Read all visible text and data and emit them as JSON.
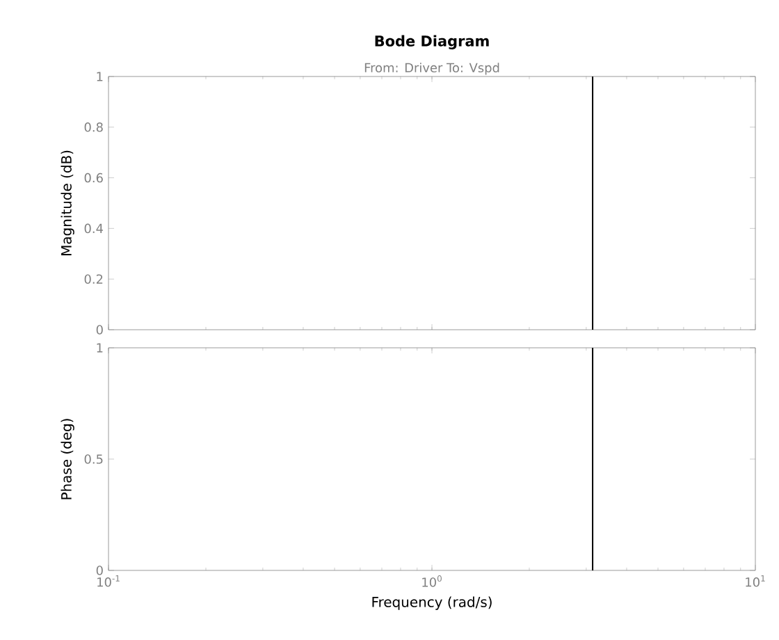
{
  "chart_data": [
    {
      "type": "line",
      "title": "Bode Diagram",
      "subtitle": "From: Driver  To: Vspd",
      "ylabel": "Magnitude (dB)",
      "log": "x",
      "xlim": [
        0.1,
        10
      ],
      "xticks": [
        {
          "value": 0.1,
          "label": null
        },
        {
          "value": 1,
          "label": null
        },
        {
          "value": 10,
          "label": null
        }
      ],
      "ylim": [
        0,
        1
      ],
      "yticks": [
        0,
        0.2,
        0.4,
        0.6,
        0.8,
        1
      ],
      "tick_labels": "y",
      "ref_lines": [
        {
          "axis": "x",
          "value": 3.14,
          "color": "#000000"
        }
      ]
    },
    {
      "type": "line",
      "xlabel": "Frequency  (rad/s)",
      "ylabel": "Phase (deg)",
      "log": "x",
      "xlim": [
        0.1,
        10
      ],
      "xticks": [
        {
          "value": 0.1,
          "label": "10$^{-1}$"
        },
        {
          "value": 1,
          "label": "10$^{0}$"
        },
        {
          "value": 10,
          "label": "10$^{1}$"
        }
      ],
      "ylim": [
        0,
        1
      ],
      "yticks": [
        0,
        0.5,
        1
      ],
      "ref_lines": [
        {
          "axis": "x",
          "value": 3.14,
          "color": "#000000"
        }
      ]
    }
  ]
}
